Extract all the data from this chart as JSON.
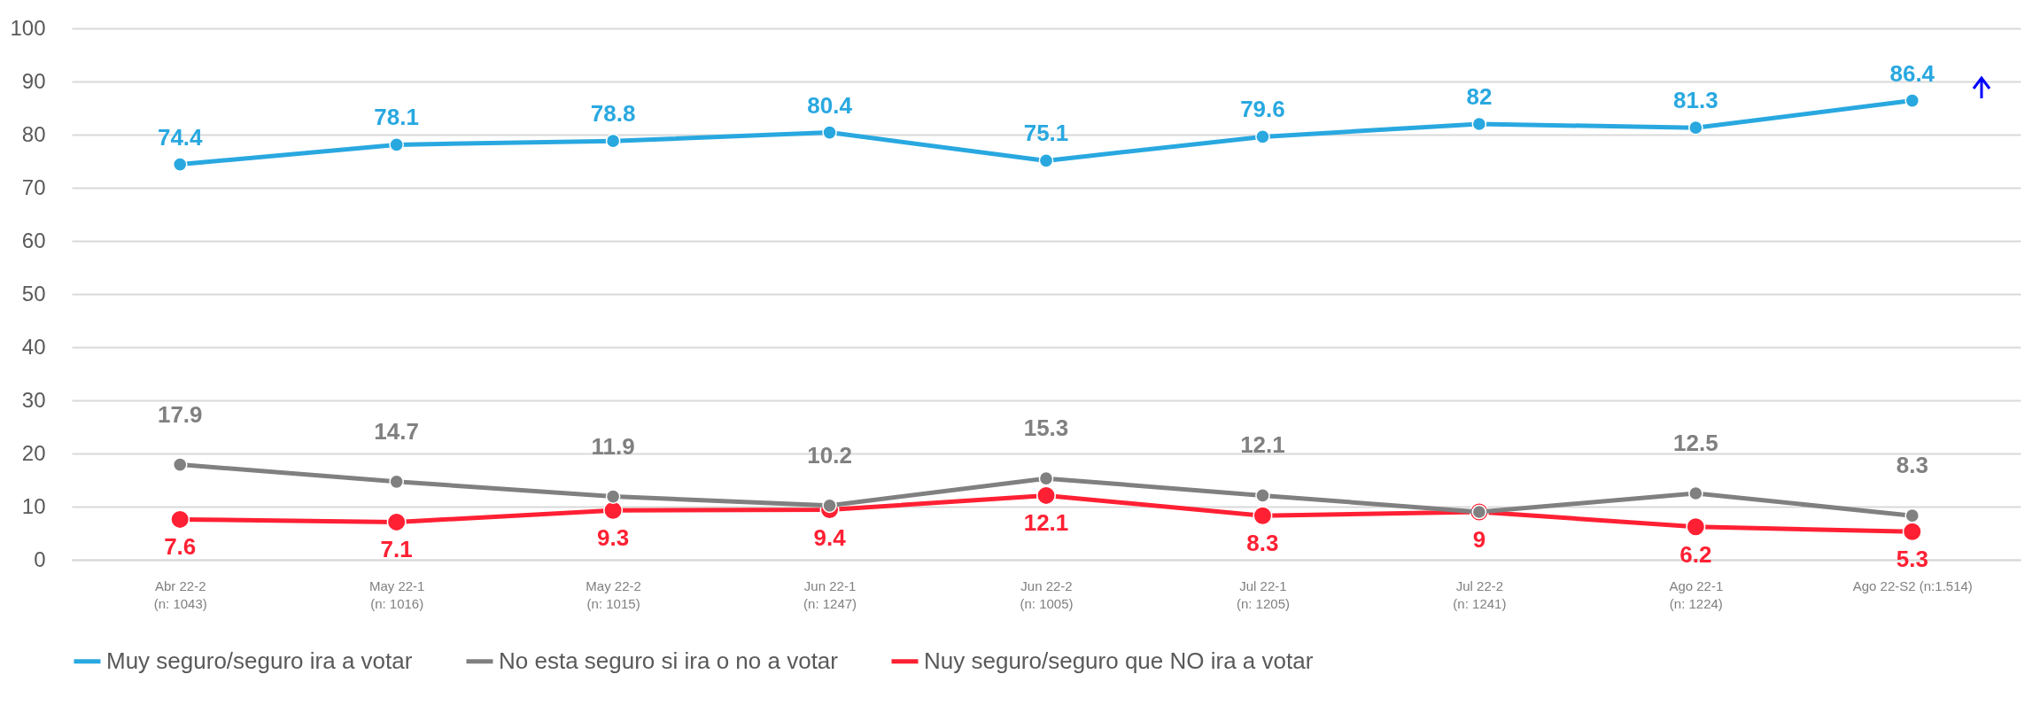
{
  "chart_data": {
    "type": "line",
    "categories": [
      "Abr 22-2\n(n: 1043)",
      "May 22-1\n(n: 1016)",
      "May 22-2\n(n: 1015)",
      "Jun 22-1\n(n: 1247)",
      "Jun 22-2\n(n: 1005)",
      "Jul 22-1\n(n: 1205)",
      "Jul 22-2\n(n: 1241)",
      "Ago 22-1\n(n: 1224)",
      "Ago 22-S2 (n:1.514)"
    ],
    "series": [
      {
        "name": "Muy seguro/seguro ira a votar",
        "color": "#29a8e0",
        "values": [
          74.4,
          78.1,
          78.8,
          80.4,
          75.1,
          79.6,
          82,
          81.3,
          86.4
        ],
        "value_labels": [
          "74.4",
          "78.1",
          "78.8",
          "80.4",
          "75.1",
          "79.6",
          "82",
          "81.3",
          "86.4"
        ]
      },
      {
        "name": "No esta seguro si ira o no a votar",
        "color": "#808080",
        "values": [
          17.9,
          14.7,
          11.9,
          10.2,
          15.3,
          12.1,
          9,
          12.5,
          8.3
        ],
        "value_labels": [
          "17.9",
          "14.7",
          "11.9",
          "10.2",
          "15.3",
          "12.1",
          null,
          "12.5",
          "8.3"
        ]
      },
      {
        "name": "Nuy seguro/seguro que NO ira a votar",
        "color": "#ff2033",
        "values": [
          7.6,
          7.1,
          9.3,
          9.4,
          12.1,
          8.3,
          9,
          6.2,
          5.3
        ],
        "value_labels": [
          "7.6",
          "7.1",
          "9.3",
          "9.4",
          "12.1",
          "8.3",
          "9",
          "6.2",
          "5.3"
        ]
      }
    ],
    "ylim": [
      0,
      100
    ],
    "yticks": [
      0,
      10,
      20,
      30,
      40,
      50,
      60,
      70,
      80,
      90,
      100
    ],
    "grid": "y",
    "legend": "bottom",
    "marker": "circle",
    "line_style": "solid"
  }
}
